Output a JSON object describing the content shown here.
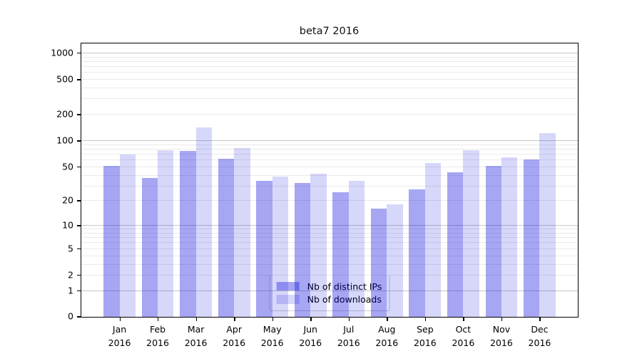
{
  "chart_data": {
    "type": "bar",
    "title": "beta7 2016",
    "xlabel": "",
    "ylabel": "",
    "yscale": "log1p",
    "ylim": [
      0,
      1273
    ],
    "yticks": [
      1000,
      500,
      200,
      100,
      50,
      20,
      10,
      5,
      2,
      1,
      0
    ],
    "grid": "horizontal major decades + log minors",
    "legend_position": "lower center",
    "x": {
      "months": [
        "Jan",
        "Feb",
        "Mar",
        "Apr",
        "May",
        "Jun",
        "Jul",
        "Aug",
        "Sep",
        "Oct",
        "Nov",
        "Dec"
      ],
      "year": "2016"
    },
    "series": [
      {
        "name": "Nb of distinct IPs",
        "color_hex": "#a6a6f3",
        "color_rgba": "rgba(0,0,220,0.35)",
        "values": [
          51,
          37,
          75,
          61,
          34,
          32,
          25,
          16,
          27,
          43,
          51,
          60
        ]
      },
      {
        "name": "Nb of downloads",
        "color_hex": "#d8d8fa",
        "color_rgba": "rgba(0,0,220,0.155)",
        "values": [
          69,
          77,
          140,
          81,
          38,
          41,
          34,
          18,
          55,
          77,
          64,
          120
        ]
      }
    ]
  }
}
